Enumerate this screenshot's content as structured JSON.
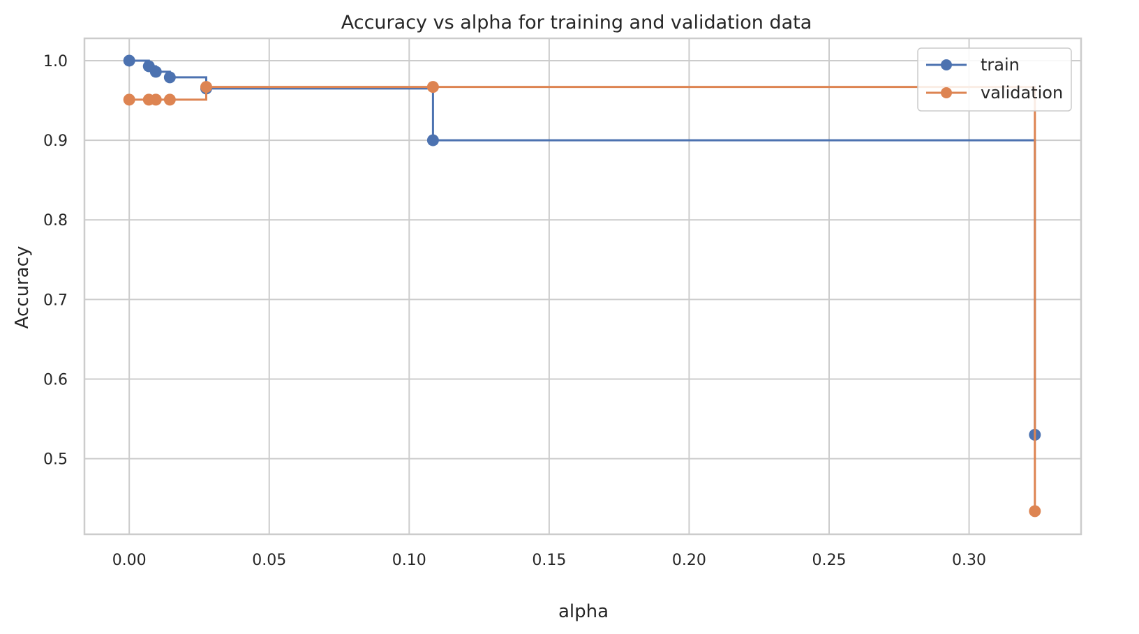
{
  "chart_data": {
    "type": "line",
    "title": "Accuracy vs alpha for training and validation data",
    "xlabel": "alpha",
    "ylabel": "Accuracy",
    "xlim": [
      -0.016,
      0.34
    ],
    "ylim": [
      0.405,
      1.028
    ],
    "xticks": [
      "0.00",
      "0.05",
      "0.10",
      "0.15",
      "0.20",
      "0.25",
      "0.30"
    ],
    "yticks": [
      "0.5",
      "0.6",
      "0.7",
      "0.8",
      "0.9",
      "1.0"
    ],
    "grid": true,
    "legend_position": "top-right",
    "drawstyle": "steps-post",
    "series": [
      {
        "name": "train",
        "color": "#4c72b0",
        "x": [
          0.0,
          0.007,
          0.0095,
          0.0145,
          0.0275,
          0.1085,
          0.3235
        ],
        "y": [
          1.0,
          0.993,
          0.986,
          0.979,
          0.965,
          0.9,
          0.53
        ]
      },
      {
        "name": "validation",
        "color": "#dd8452",
        "x": [
          0.0,
          0.007,
          0.0095,
          0.0145,
          0.0275,
          0.1085,
          0.3235
        ],
        "y": [
          0.951,
          0.951,
          0.951,
          0.951,
          0.967,
          0.967,
          0.434
        ]
      }
    ]
  }
}
